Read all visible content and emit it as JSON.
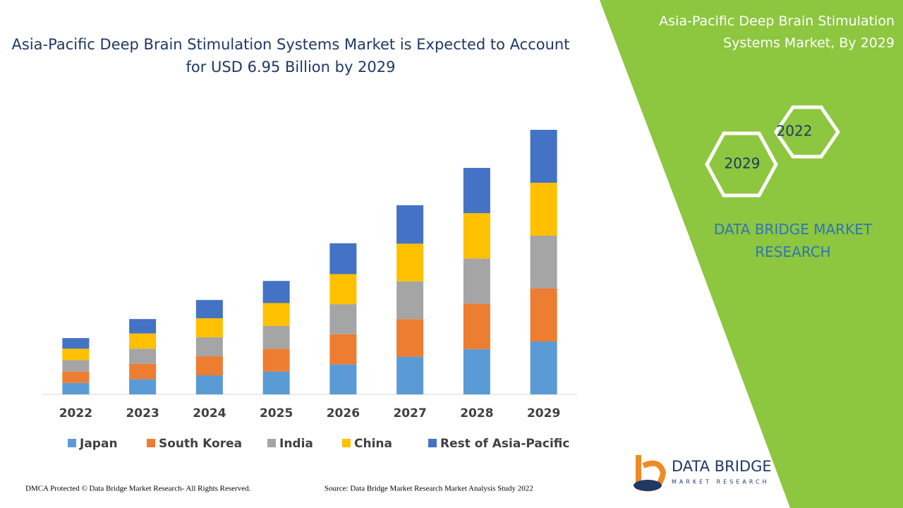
{
  "chart_data": {
    "type": "stacked_bar",
    "title": "Asia-Pacific Deep Brain Stimulation Systems Market is Expected to Account for USD 6.95 Billion by 2029",
    "categories": [
      "2022",
      "2023",
      "2024",
      "2025",
      "2026",
      "2027",
      "2028",
      "2029"
    ],
    "series": [
      {
        "name": "Japan",
        "color": "#5b9bd5",
        "values": [
          0.3,
          0.4,
          0.5,
          0.6,
          0.79,
          0.99,
          1.19,
          1.39
        ]
      },
      {
        "name": "South Korea",
        "color": "#ed7d31",
        "values": [
          0.3,
          0.4,
          0.5,
          0.6,
          0.79,
          0.99,
          1.19,
          1.39
        ]
      },
      {
        "name": "India",
        "color": "#a5a5a5",
        "values": [
          0.3,
          0.4,
          0.5,
          0.6,
          0.79,
          0.99,
          1.19,
          1.39
        ]
      },
      {
        "name": "China",
        "color": "#ffc000",
        "values": [
          0.3,
          0.4,
          0.5,
          0.6,
          0.79,
          0.99,
          1.19,
          1.39
        ]
      },
      {
        "name": "Rest of Asia-Pacific",
        "color": "#4472c4",
        "values": [
          0.28,
          0.38,
          0.48,
          0.58,
          0.81,
          1.01,
          1.19,
          1.39
        ]
      }
    ],
    "ylim": [
      0,
      6.95
    ],
    "legend": "bottom"
  },
  "side_panel": {
    "title": "Asia-Pacific Deep Brain Stimulation Systems Market, By 2029",
    "hexagons": [
      "2022",
      "2029"
    ],
    "brand": "DATA BRIDGE MARKET RESEARCH"
  },
  "logo": {
    "name": "DATA BRIDGE",
    "tagline": "MARKET RESEARCH"
  },
  "footer": {
    "left": "DMCA Protected © Data Bridge Market Research- All Rights Reserved.",
    "right": "Source: Data Bridge Market Research Market Analysis Study 2022"
  }
}
